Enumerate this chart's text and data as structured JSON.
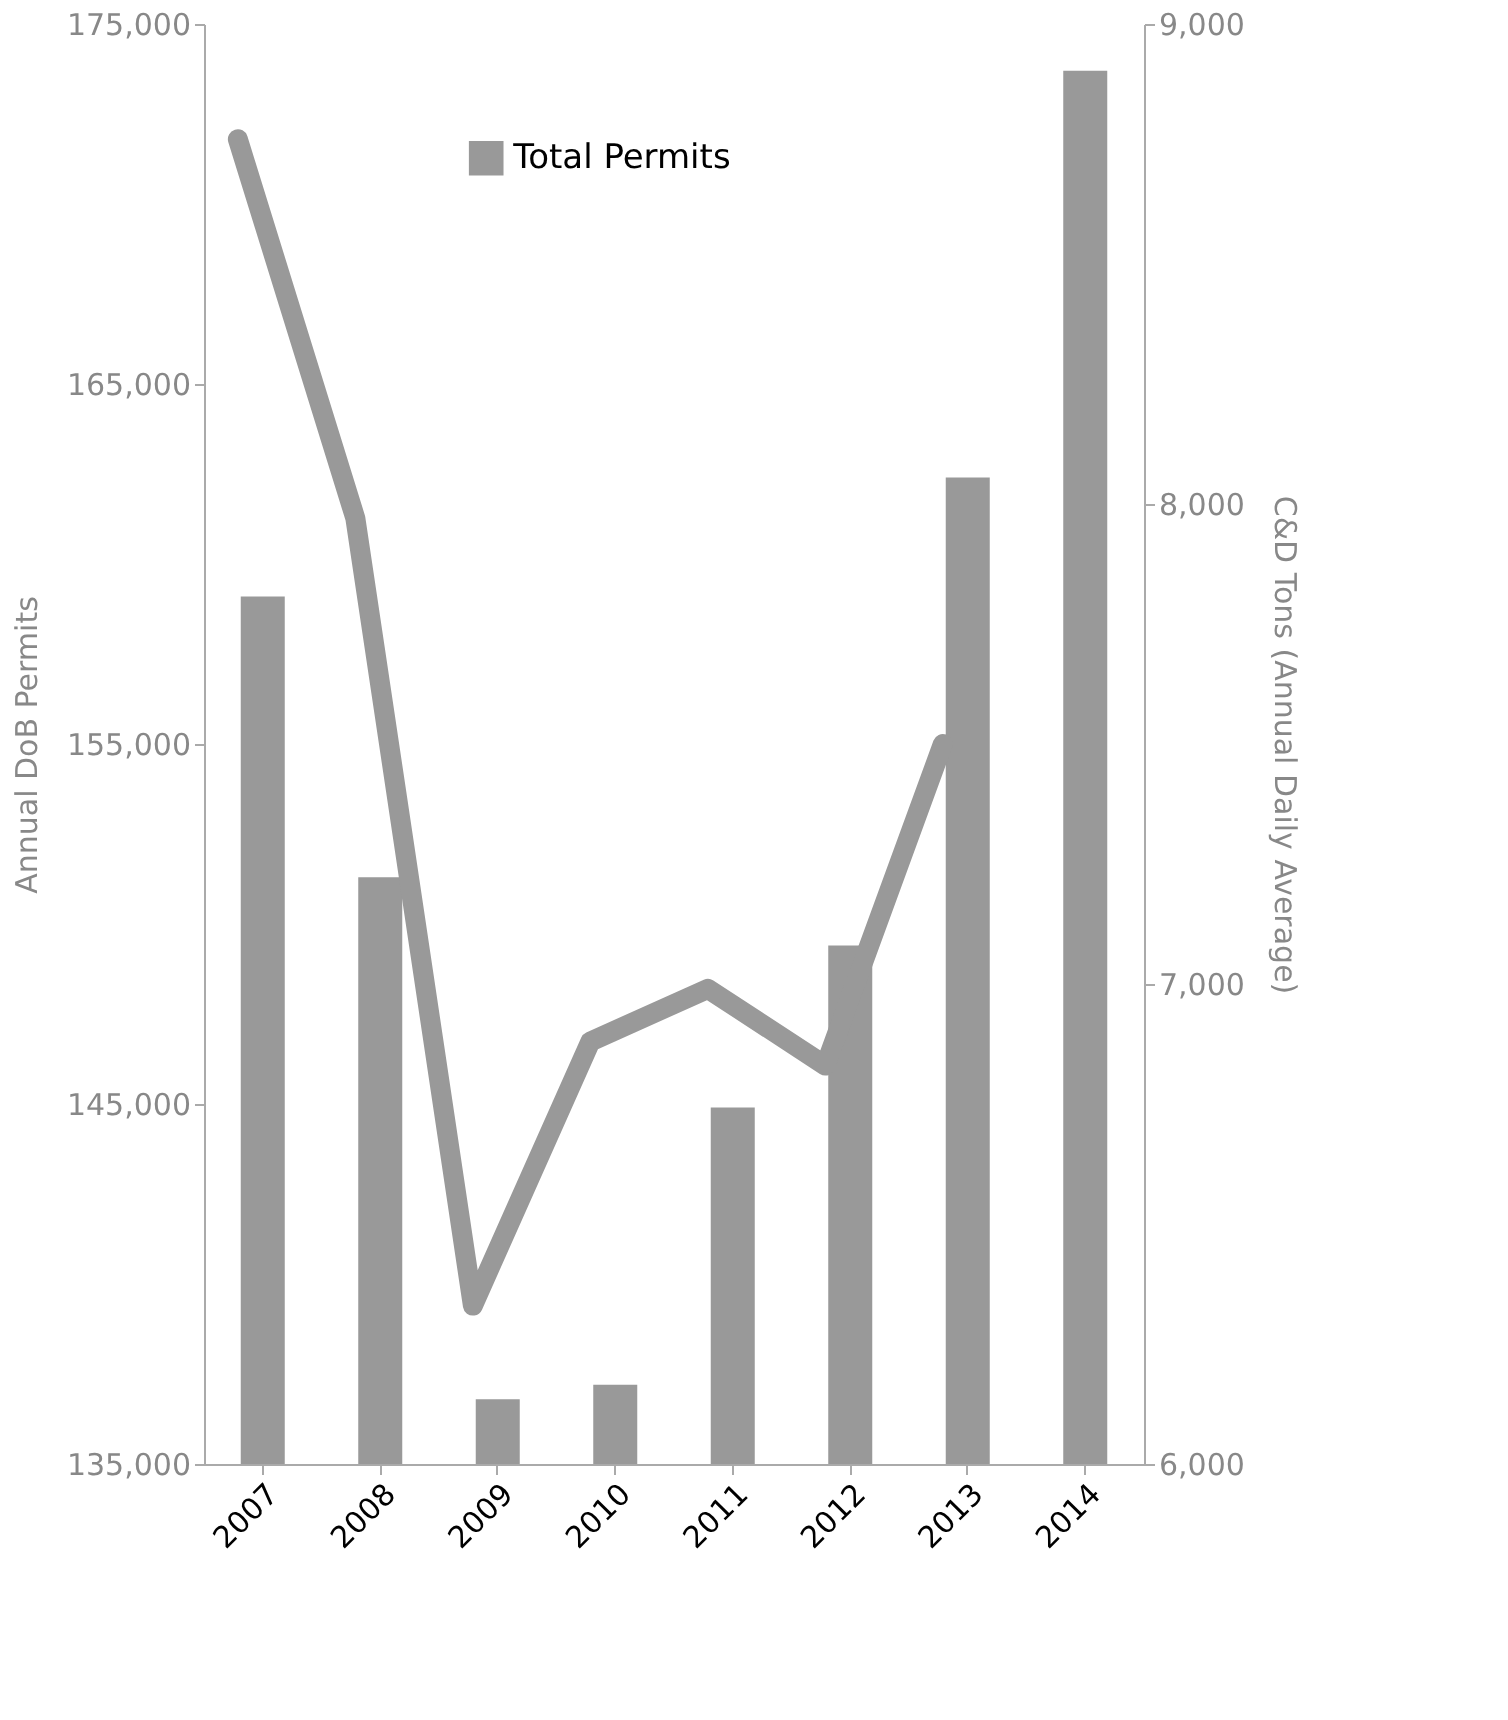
{
  "chart_data": {
    "type": "bar",
    "categories": [
      "2007",
      "2008",
      "2009",
      "2010",
      "2011",
      "2012",
      "2013",
      "2014"
    ],
    "series": [
      {
        "name": "Total Permits",
        "color": "#999999",
        "values": [
          159100,
          151300,
          136800,
          137200,
          144900,
          149400,
          162400,
          173700
        ]
      },
      {
        "type": "line",
        "axis": "y2",
        "color": "#999999",
        "values": [
          8760,
          7970,
          6330,
          6880,
          6990,
          6830,
          7500,
          null
        ]
      }
    ],
    "ylabel": "Annual DoB Permits",
    "y2label": "C&D Tons (Annual Daily Average)",
    "ylim": [
      135000,
      175000
    ],
    "yticks": [
      {
        "value": 135000,
        "label": "135,000"
      },
      {
        "value": 145000,
        "label": "145,000"
      },
      {
        "value": 155000,
        "label": "155,000"
      },
      {
        "value": 165000,
        "label": "165,000"
      },
      {
        "value": 175000,
        "label": "175,000"
      }
    ],
    "y2lim": [
      6000,
      9000
    ],
    "y2ticks": [
      {
        "value": 6000,
        "label": "6,000"
      },
      {
        "value": 7000,
        "label": "7,000"
      },
      {
        "value": 8000,
        "label": "8,000"
      },
      {
        "value": 9000,
        "label": "9,000"
      }
    ],
    "legend": "top",
    "grid": false
  }
}
